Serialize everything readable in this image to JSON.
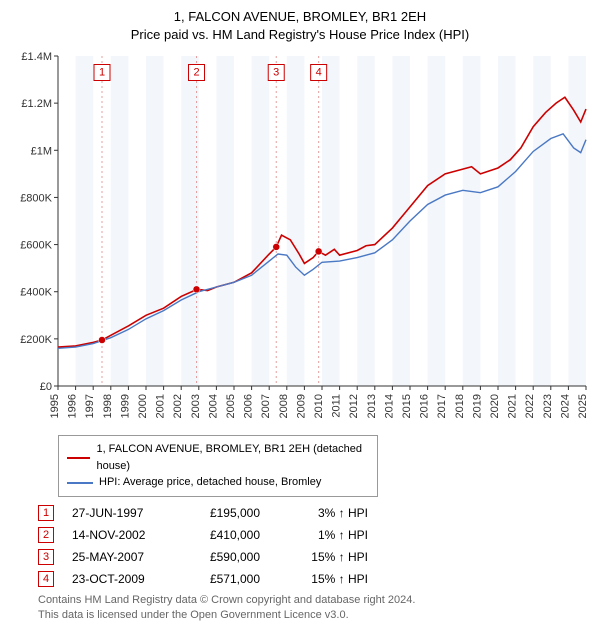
{
  "title": {
    "line1": "1, FALCON AVENUE, BROMLEY, BR1 2EH",
    "line2": "Price paid vs. HM Land Registry's House Price Index (HPI)"
  },
  "chart": {
    "type": "line",
    "background_color": "#ffffff",
    "alt_band_color": "#f3f6fa",
    "vline_color": "#e4a0a0",
    "vline_dash": "2,3",
    "grid_color": "#eeeeee",
    "ylim": [
      0,
      1400000
    ],
    "ytick_step": 200000,
    "yticks": [
      "£0",
      "£200K",
      "£400K",
      "£600K",
      "£800K",
      "£1M",
      "£1.2M",
      "£1.4M"
    ],
    "xlim": [
      1995,
      2025
    ],
    "xticks": [
      1995,
      1996,
      1997,
      1998,
      1999,
      2000,
      2001,
      2002,
      2003,
      2004,
      2005,
      2006,
      2007,
      2008,
      2009,
      2010,
      2011,
      2012,
      2013,
      2014,
      2015,
      2016,
      2017,
      2018,
      2019,
      2020,
      2021,
      2022,
      2023,
      2024,
      2025
    ],
    "series": [
      {
        "name": "1, FALCON AVENUE, BROMLEY, BR1 2EH (detached house)",
        "color": "#cc0000",
        "width": 1.6,
        "data": [
          [
            1995.0,
            165000
          ],
          [
            1996.0,
            170000
          ],
          [
            1997.0,
            185000
          ],
          [
            1997.5,
            195000
          ],
          [
            1998.0,
            215000
          ],
          [
            1999.0,
            255000
          ],
          [
            2000.0,
            300000
          ],
          [
            2001.0,
            330000
          ],
          [
            2002.0,
            380000
          ],
          [
            2002.9,
            410000
          ],
          [
            2003.5,
            405000
          ],
          [
            2004.0,
            420000
          ],
          [
            2005.0,
            440000
          ],
          [
            2006.0,
            480000
          ],
          [
            2007.0,
            560000
          ],
          [
            2007.4,
            590000
          ],
          [
            2007.7,
            640000
          ],
          [
            2008.2,
            620000
          ],
          [
            2008.7,
            560000
          ],
          [
            2009.0,
            520000
          ],
          [
            2009.5,
            545000
          ],
          [
            2009.8,
            571000
          ],
          [
            2010.2,
            555000
          ],
          [
            2010.7,
            580000
          ],
          [
            2011.0,
            555000
          ],
          [
            2012.0,
            575000
          ],
          [
            2012.5,
            595000
          ],
          [
            2013.0,
            600000
          ],
          [
            2014.0,
            670000
          ],
          [
            2015.0,
            760000
          ],
          [
            2016.0,
            850000
          ],
          [
            2017.0,
            900000
          ],
          [
            2018.0,
            920000
          ],
          [
            2018.5,
            930000
          ],
          [
            2019.0,
            900000
          ],
          [
            2020.0,
            925000
          ],
          [
            2020.7,
            960000
          ],
          [
            2021.3,
            1010000
          ],
          [
            2022.0,
            1100000
          ],
          [
            2022.7,
            1160000
          ],
          [
            2023.3,
            1200000
          ],
          [
            2023.8,
            1225000
          ],
          [
            2024.3,
            1170000
          ],
          [
            2024.7,
            1120000
          ],
          [
            2025.0,
            1175000
          ]
        ]
      },
      {
        "name": "HPI: Average price, detached house, Bromley",
        "color": "#4a78c4",
        "width": 1.4,
        "data": [
          [
            1995.0,
            160000
          ],
          [
            1996.0,
            165000
          ],
          [
            1997.0,
            180000
          ],
          [
            1998.0,
            205000
          ],
          [
            1999.0,
            240000
          ],
          [
            2000.0,
            285000
          ],
          [
            2001.0,
            320000
          ],
          [
            2002.0,
            365000
          ],
          [
            2003.0,
            400000
          ],
          [
            2004.0,
            420000
          ],
          [
            2005.0,
            440000
          ],
          [
            2006.0,
            470000
          ],
          [
            2007.0,
            530000
          ],
          [
            2007.5,
            560000
          ],
          [
            2008.0,
            555000
          ],
          [
            2008.5,
            505000
          ],
          [
            2009.0,
            470000
          ],
          [
            2009.5,
            495000
          ],
          [
            2010.0,
            525000
          ],
          [
            2011.0,
            530000
          ],
          [
            2012.0,
            545000
          ],
          [
            2013.0,
            565000
          ],
          [
            2014.0,
            620000
          ],
          [
            2015.0,
            700000
          ],
          [
            2016.0,
            770000
          ],
          [
            2017.0,
            810000
          ],
          [
            2018.0,
            830000
          ],
          [
            2019.0,
            820000
          ],
          [
            2020.0,
            845000
          ],
          [
            2021.0,
            910000
          ],
          [
            2022.0,
            995000
          ],
          [
            2023.0,
            1050000
          ],
          [
            2023.7,
            1070000
          ],
          [
            2024.3,
            1010000
          ],
          [
            2024.7,
            990000
          ],
          [
            2025.0,
            1045000
          ]
        ]
      }
    ],
    "sale_markers": [
      {
        "n": "1",
        "year": 1997.5,
        "price": 195000
      },
      {
        "n": "2",
        "year": 2002.87,
        "price": 410000
      },
      {
        "n": "3",
        "year": 2007.4,
        "price": 590000
      },
      {
        "n": "4",
        "year": 2009.81,
        "price": 571000
      }
    ],
    "marker_box_size": 16,
    "marker_top_y": 1330000,
    "dot_radius": 3.5
  },
  "legend": {
    "items": [
      {
        "color": "#cc0000",
        "label": "1, FALCON AVENUE, BROMLEY, BR1 2EH (detached house)"
      },
      {
        "color": "#4a78c4",
        "label": "HPI: Average price, detached house, Bromley"
      }
    ]
  },
  "events": [
    {
      "n": "1",
      "date": "27-JUN-1997",
      "price": "£195,000",
      "delta": "3% ↑ HPI"
    },
    {
      "n": "2",
      "date": "14-NOV-2002",
      "price": "£410,000",
      "delta": "1% ↑ HPI"
    },
    {
      "n": "3",
      "date": "25-MAY-2007",
      "price": "£590,000",
      "delta": "15% ↑ HPI"
    },
    {
      "n": "4",
      "date": "23-OCT-2009",
      "price": "£571,000",
      "delta": "15% ↑ HPI"
    }
  ],
  "footer": {
    "line1": "Contains HM Land Registry data © Crown copyright and database right 2024.",
    "line2": "This data is licensed under the Open Government Licence v3.0."
  }
}
